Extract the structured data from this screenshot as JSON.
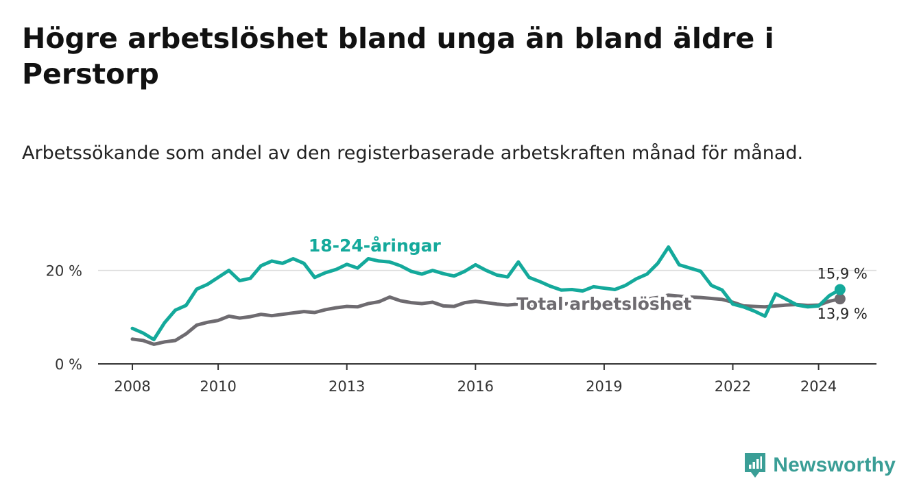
{
  "title": "Högre arbetslöshet bland unga än bland äldre i Perstorp",
  "subtitle": "Arbetssökande som andel av den registerbaserade arbetskraften månad för månad.",
  "brand": {
    "name": "Newsworthy",
    "icon": "newsworthy-logo-icon",
    "color": "#3a9e96"
  },
  "chart_data": {
    "type": "line",
    "y_ticks": [
      {
        "value": 0,
        "label": "0 %"
      },
      {
        "value": 20,
        "label": "20 %"
      }
    ],
    "x_ticks": [
      {
        "value": 2008,
        "label": "2008"
      },
      {
        "value": 2010,
        "label": "2010"
      },
      {
        "value": 2013,
        "label": "2013"
      },
      {
        "value": 2016,
        "label": "2016"
      },
      {
        "value": 2019,
        "label": "2019"
      },
      {
        "value": 2022,
        "label": "2022"
      },
      {
        "value": 2024,
        "label": "2024"
      }
    ],
    "xlim": [
      2007.2,
      2025.35
    ],
    "ylim": [
      0,
      28
    ],
    "grid": "horizontal",
    "series": [
      {
        "name": "18-24-åringar",
        "color": "#14a99b",
        "end_label": "15,9 %",
        "x": [
          2008.0,
          2008.25,
          2008.5,
          2008.75,
          2009.0,
          2009.25,
          2009.5,
          2009.75,
          2010.0,
          2010.25,
          2010.5,
          2010.75,
          2011.0,
          2011.25,
          2011.5,
          2011.75,
          2012.0,
          2012.25,
          2012.5,
          2012.75,
          2013.0,
          2013.25,
          2013.5,
          2013.75,
          2014.0,
          2014.25,
          2014.5,
          2014.75,
          2015.0,
          2015.25,
          2015.5,
          2015.75,
          2016.0,
          2016.25,
          2016.5,
          2016.75,
          2017.0,
          2017.25,
          2017.5,
          2017.75,
          2018.0,
          2018.25,
          2018.5,
          2018.75,
          2019.0,
          2019.25,
          2019.5,
          2019.75,
          2020.0,
          2020.25,
          2020.5,
          2020.75,
          2021.0,
          2021.25,
          2021.5,
          2021.75,
          2022.0,
          2022.25,
          2022.5,
          2022.75,
          2023.0,
          2023.25,
          2023.5,
          2023.75,
          2024.0,
          2024.25,
          2024.5
        ],
        "y": [
          7.6,
          6.6,
          5.2,
          8.8,
          11.5,
          12.5,
          16.0,
          17.0,
          18.5,
          20.0,
          17.8,
          18.3,
          21.0,
          22.0,
          21.5,
          22.5,
          21.5,
          18.5,
          19.5,
          20.2,
          21.3,
          20.5,
          22.5,
          22.0,
          21.8,
          21.0,
          19.8,
          19.2,
          20.0,
          19.3,
          18.8,
          19.8,
          21.2,
          20.0,
          19.0,
          18.6,
          21.8,
          18.5,
          17.6,
          16.6,
          15.8,
          15.9,
          15.6,
          16.5,
          16.2,
          15.9,
          16.8,
          18.2,
          19.2,
          21.5,
          25.0,
          21.2,
          20.5,
          19.8,
          16.8,
          15.8,
          12.8,
          12.2,
          11.3,
          10.2,
          15.0,
          13.8,
          12.6,
          12.2,
          12.4,
          14.6,
          15.9
        ]
      },
      {
        "name": "Total arbetslöshet",
        "color": "#6e6b70",
        "end_label": "13,9 %",
        "x": [
          2008.0,
          2008.25,
          2008.5,
          2008.75,
          2009.0,
          2009.25,
          2009.5,
          2009.75,
          2010.0,
          2010.25,
          2010.5,
          2010.75,
          2011.0,
          2011.25,
          2011.5,
          2011.75,
          2012.0,
          2012.25,
          2012.5,
          2012.75,
          2013.0,
          2013.25,
          2013.5,
          2013.75,
          2014.0,
          2014.25,
          2014.5,
          2014.75,
          2015.0,
          2015.25,
          2015.5,
          2015.75,
          2016.0,
          2016.25,
          2016.5,
          2016.75,
          2017.0,
          2017.25,
          2017.5,
          2017.75,
          2018.0,
          2018.25,
          2018.5,
          2018.75,
          2019.0,
          2019.25,
          2019.5,
          2019.75,
          2020.0,
          2020.25,
          2020.5,
          2020.75,
          2021.0,
          2021.25,
          2021.5,
          2021.75,
          2022.0,
          2022.25,
          2022.5,
          2022.75,
          2023.0,
          2023.25,
          2023.5,
          2023.75,
          2024.0,
          2024.25,
          2024.5
        ],
        "y": [
          5.3,
          5.0,
          4.2,
          4.7,
          5.0,
          6.4,
          8.3,
          8.9,
          9.3,
          10.2,
          9.8,
          10.1,
          10.6,
          10.3,
          10.6,
          10.9,
          11.2,
          11.0,
          11.6,
          12.0,
          12.3,
          12.2,
          12.9,
          13.3,
          14.3,
          13.5,
          13.1,
          12.9,
          13.2,
          12.4,
          12.3,
          13.1,
          13.4,
          13.1,
          12.8,
          12.6,
          12.8,
          12.9,
          12.7,
          12.6,
          12.8,
          12.9,
          13.2,
          13.2,
          13.4,
          13.5,
          13.7,
          13.8,
          13.9,
          14.2,
          14.7,
          14.5,
          14.3,
          14.2,
          14.0,
          13.8,
          13.2,
          12.4,
          12.3,
          12.2,
          12.4,
          12.6,
          12.7,
          12.5,
          12.6,
          13.4,
          13.9
        ]
      }
    ],
    "annotations": [
      {
        "text": "18-24-åringar",
        "series": 0
      },
      {
        "text": "Total arbetslöshet",
        "series": 1
      }
    ]
  }
}
